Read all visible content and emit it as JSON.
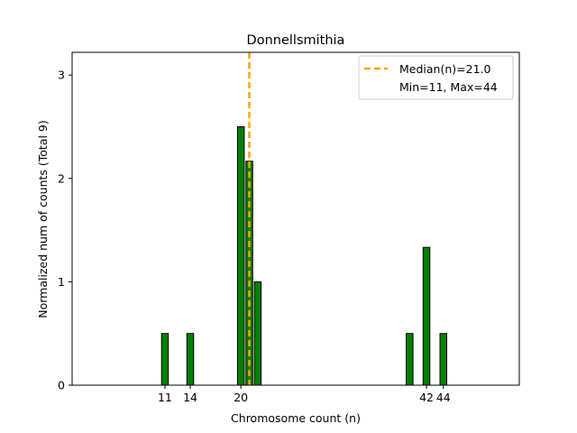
{
  "chart_data": {
    "type": "bar",
    "title": "Donnellsmithia",
    "xlabel": "Chromosome count (n)",
    "ylabel": "Normalized num of counts     (Total 9)",
    "x": [
      11,
      14,
      20,
      21,
      22,
      40,
      42,
      44
    ],
    "values": [
      0.5,
      0.5,
      2.5,
      2.1667,
      1.0,
      0.5,
      1.3333,
      0.5
    ],
    "bar_color": "#008000",
    "bar_edge_color": "#000000",
    "xlim": [
      0,
      53
    ],
    "ylim": [
      0,
      3.22
    ],
    "xticks": [
      11,
      14,
      20,
      42,
      44
    ],
    "yticks": [
      0,
      1,
      2,
      3
    ],
    "median": 21.0,
    "median_color": "#FFA500",
    "legend": {
      "position": "top-right",
      "entries": [
        "Median(n)=21.0",
        "Min=11, Max=44"
      ]
    }
  }
}
